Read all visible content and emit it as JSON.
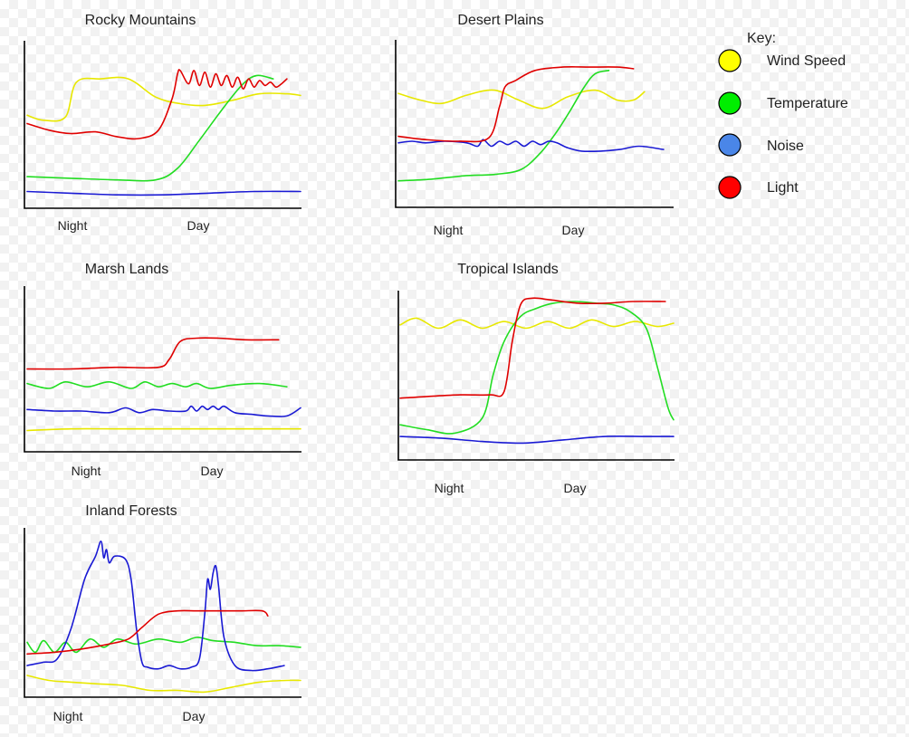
{
  "legend": {
    "title": "Key:",
    "items": [
      {
        "label": "Wind Speed",
        "color": "#ffff00"
      },
      {
        "label": "Temperature",
        "color": "#00ee00"
      },
      {
        "label": "Noise",
        "color": "#4a86e8"
      },
      {
        "label": "Light",
        "color": "#ff0000"
      }
    ]
  },
  "series_colors": {
    "Wind Speed": "#e8e800",
    "Temperature": "#22dd22",
    "Noise": "#1a1ad4",
    "Light": "#e00000"
  },
  "chart_data": [
    {
      "type": "line",
      "title": "Rocky Mountains",
      "x_ticks": [
        "Night",
        "Day"
      ],
      "series": [
        {
          "name": "Wind Speed",
          "x": [
            0,
            0.06,
            0.14,
            0.18,
            0.27,
            0.37,
            0.47,
            0.56,
            0.65,
            0.75,
            0.85,
            0.95,
            1.0
          ],
          "y": [
            0.55,
            0.52,
            0.54,
            0.75,
            0.77,
            0.77,
            0.66,
            0.62,
            0.61,
            0.64,
            0.68,
            0.68,
            0.67
          ]
        },
        {
          "name": "Temperature",
          "x": [
            0,
            0.16,
            0.33,
            0.47,
            0.55,
            0.63,
            0.72,
            0.79,
            0.84,
            0.9
          ],
          "y": [
            0.18,
            0.17,
            0.16,
            0.16,
            0.23,
            0.4,
            0.6,
            0.74,
            0.79,
            0.77
          ]
        },
        {
          "name": "Noise",
          "x": [
            0,
            0.16,
            0.33,
            0.5,
            0.66,
            0.83,
            1.0
          ],
          "y": [
            0.09,
            0.08,
            0.07,
            0.07,
            0.08,
            0.09,
            0.09
          ]
        },
        {
          "name": "Light",
          "x": [
            0,
            0.08,
            0.16,
            0.25,
            0.33,
            0.41,
            0.48,
            0.53,
            0.55,
            0.56,
            0.59,
            0.61,
            0.63,
            0.65,
            0.67,
            0.69,
            0.71,
            0.73,
            0.75,
            0.77,
            0.79,
            0.81,
            0.83,
            0.85,
            0.87,
            0.89,
            0.91,
            0.93,
            0.95
          ],
          "y": [
            0.5,
            0.46,
            0.44,
            0.45,
            0.42,
            0.41,
            0.46,
            0.65,
            0.8,
            0.82,
            0.74,
            0.82,
            0.73,
            0.81,
            0.72,
            0.8,
            0.73,
            0.79,
            0.72,
            0.78,
            0.71,
            0.77,
            0.72,
            0.76,
            0.73,
            0.75,
            0.72,
            0.74,
            0.77
          ]
        }
      ]
    },
    {
      "type": "line",
      "title": "Desert Plains",
      "x_ticks": [
        "Night",
        "Day"
      ],
      "series": [
        {
          "name": "Wind Speed",
          "x": [
            0,
            0.08,
            0.16,
            0.25,
            0.35,
            0.44,
            0.53,
            0.62,
            0.72,
            0.8,
            0.86,
            0.9
          ],
          "y": [
            0.68,
            0.64,
            0.62,
            0.67,
            0.7,
            0.64,
            0.59,
            0.66,
            0.7,
            0.64,
            0.64,
            0.69
          ]
        },
        {
          "name": "Temperature",
          "x": [
            0,
            0.12,
            0.24,
            0.36,
            0.45,
            0.52,
            0.58,
            0.63,
            0.68,
            0.72,
            0.77
          ],
          "y": [
            0.15,
            0.16,
            0.18,
            0.19,
            0.22,
            0.32,
            0.45,
            0.58,
            0.72,
            0.8,
            0.82
          ]
        },
        {
          "name": "Noise",
          "x": [
            0,
            0.05,
            0.1,
            0.17,
            0.25,
            0.29,
            0.31,
            0.34,
            0.37,
            0.4,
            0.43,
            0.46,
            0.49,
            0.52,
            0.55,
            0.58,
            0.62,
            0.67,
            0.74,
            0.81,
            0.88,
            0.97
          ],
          "y": [
            0.38,
            0.39,
            0.38,
            0.39,
            0.38,
            0.36,
            0.4,
            0.36,
            0.39,
            0.37,
            0.39,
            0.36,
            0.39,
            0.37,
            0.39,
            0.38,
            0.35,
            0.33,
            0.33,
            0.34,
            0.36,
            0.34
          ]
        },
        {
          "name": "Light",
          "x": [
            0,
            0.1,
            0.22,
            0.33,
            0.37,
            0.39,
            0.43,
            0.5,
            0.6,
            0.7,
            0.8,
            0.86
          ],
          "y": [
            0.42,
            0.4,
            0.39,
            0.41,
            0.6,
            0.72,
            0.76,
            0.82,
            0.84,
            0.84,
            0.84,
            0.83
          ]
        }
      ]
    },
    {
      "type": "line",
      "title": "Marsh Lands",
      "x_ticks": [
        "Night",
        "Day"
      ],
      "series": [
        {
          "name": "Wind Speed",
          "x": [
            0,
            0.16,
            0.33,
            0.5,
            0.66,
            0.83,
            1.0
          ],
          "y": [
            0.12,
            0.13,
            0.13,
            0.13,
            0.13,
            0.13,
            0.13
          ]
        },
        {
          "name": "Temperature",
          "x": [
            0,
            0.08,
            0.14,
            0.22,
            0.3,
            0.38,
            0.43,
            0.48,
            0.53,
            0.58,
            0.62,
            0.67,
            0.75,
            0.85,
            0.95
          ],
          "y": [
            0.41,
            0.38,
            0.42,
            0.39,
            0.42,
            0.38,
            0.42,
            0.39,
            0.41,
            0.39,
            0.41,
            0.38,
            0.4,
            0.41,
            0.39
          ]
        },
        {
          "name": "Noise",
          "x": [
            0,
            0.1,
            0.2,
            0.3,
            0.36,
            0.41,
            0.46,
            0.52,
            0.58,
            0.6,
            0.62,
            0.64,
            0.66,
            0.68,
            0.7,
            0.72,
            0.76,
            0.82,
            0.88,
            0.95,
            1.0
          ],
          "y": [
            0.25,
            0.24,
            0.24,
            0.23,
            0.26,
            0.23,
            0.25,
            0.24,
            0.24,
            0.27,
            0.24,
            0.27,
            0.25,
            0.27,
            0.25,
            0.27,
            0.23,
            0.22,
            0.21,
            0.21,
            0.26
          ]
        },
        {
          "name": "Light",
          "x": [
            0,
            0.16,
            0.33,
            0.48,
            0.52,
            0.56,
            0.62,
            0.7,
            0.8,
            0.92
          ],
          "y": [
            0.5,
            0.5,
            0.51,
            0.51,
            0.56,
            0.67,
            0.69,
            0.69,
            0.68,
            0.68
          ]
        }
      ]
    },
    {
      "type": "line",
      "title": "Tropical Islands",
      "x_ticks": [
        "Night",
        "Day"
      ],
      "series": [
        {
          "name": "Wind Speed",
          "x": [
            0,
            0.06,
            0.14,
            0.22,
            0.3,
            0.38,
            0.46,
            0.54,
            0.62,
            0.7,
            0.78,
            0.86,
            0.94,
            1.0
          ],
          "y": [
            0.8,
            0.84,
            0.78,
            0.83,
            0.78,
            0.82,
            0.78,
            0.82,
            0.78,
            0.83,
            0.79,
            0.82,
            0.79,
            0.81
          ]
        },
        {
          "name": "Temperature",
          "x": [
            0,
            0.1,
            0.2,
            0.3,
            0.34,
            0.38,
            0.44,
            0.5,
            0.56,
            0.64,
            0.72,
            0.78,
            0.84,
            0.9,
            0.94,
            0.98,
            1.0
          ],
          "y": [
            0.2,
            0.17,
            0.15,
            0.24,
            0.5,
            0.7,
            0.85,
            0.9,
            0.93,
            0.94,
            0.93,
            0.92,
            0.88,
            0.78,
            0.55,
            0.3,
            0.23
          ]
        },
        {
          "name": "Noise",
          "x": [
            0,
            0.15,
            0.3,
            0.45,
            0.6,
            0.75,
            0.9,
            1.0
          ],
          "y": [
            0.13,
            0.12,
            0.1,
            0.09,
            0.11,
            0.13,
            0.13,
            0.13
          ]
        },
        {
          "name": "Light",
          "x": [
            0,
            0.1,
            0.22,
            0.33,
            0.38,
            0.41,
            0.44,
            0.48,
            0.55,
            0.65,
            0.75,
            0.85,
            0.97
          ],
          "y": [
            0.36,
            0.37,
            0.38,
            0.38,
            0.4,
            0.7,
            0.92,
            0.96,
            0.95,
            0.93,
            0.93,
            0.94,
            0.94
          ]
        }
      ]
    },
    {
      "type": "line",
      "title": "Inland Forests",
      "x_ticks": [
        "Night",
        "Day"
      ],
      "series": [
        {
          "name": "Wind Speed",
          "x": [
            0,
            0.08,
            0.16,
            0.25,
            0.35,
            0.45,
            0.55,
            0.65,
            0.75,
            0.85,
            0.95,
            1.0
          ],
          "y": [
            0.12,
            0.09,
            0.08,
            0.07,
            0.06,
            0.03,
            0.03,
            0.02,
            0.05,
            0.08,
            0.09,
            0.09
          ]
        },
        {
          "name": "Temperature",
          "x": [
            0,
            0.03,
            0.06,
            0.1,
            0.14,
            0.18,
            0.23,
            0.28,
            0.33,
            0.4,
            0.48,
            0.56,
            0.62,
            0.68,
            0.76,
            0.84,
            0.92,
            1.0
          ],
          "y": [
            0.32,
            0.26,
            0.33,
            0.26,
            0.32,
            0.26,
            0.34,
            0.29,
            0.34,
            0.31,
            0.34,
            0.32,
            0.35,
            0.33,
            0.32,
            0.3,
            0.3,
            0.29
          ]
        },
        {
          "name": "Noise",
          "x": [
            0,
            0.06,
            0.11,
            0.16,
            0.21,
            0.25,
            0.27,
            0.28,
            0.29,
            0.3,
            0.32,
            0.36,
            0.38,
            0.4,
            0.42,
            0.44,
            0.48,
            0.52,
            0.56,
            0.6,
            0.63,
            0.65,
            0.66,
            0.67,
            0.68,
            0.69,
            0.7,
            0.72,
            0.76,
            0.82,
            0.88,
            0.94
          ],
          "y": [
            0.18,
            0.2,
            0.22,
            0.4,
            0.7,
            0.84,
            0.93,
            0.83,
            0.88,
            0.8,
            0.84,
            0.82,
            0.7,
            0.4,
            0.2,
            0.17,
            0.16,
            0.18,
            0.16,
            0.17,
            0.22,
            0.5,
            0.7,
            0.64,
            0.74,
            0.78,
            0.66,
            0.35,
            0.18,
            0.15,
            0.16,
            0.18
          ]
        },
        {
          "name": "Light",
          "x": [
            0,
            0.1,
            0.2,
            0.3,
            0.37,
            0.42,
            0.48,
            0.55,
            0.62,
            0.7,
            0.78,
            0.86,
            0.88
          ],
          "y": [
            0.25,
            0.26,
            0.28,
            0.31,
            0.34,
            0.41,
            0.49,
            0.51,
            0.51,
            0.51,
            0.51,
            0.51,
            0.48
          ]
        }
      ]
    }
  ]
}
